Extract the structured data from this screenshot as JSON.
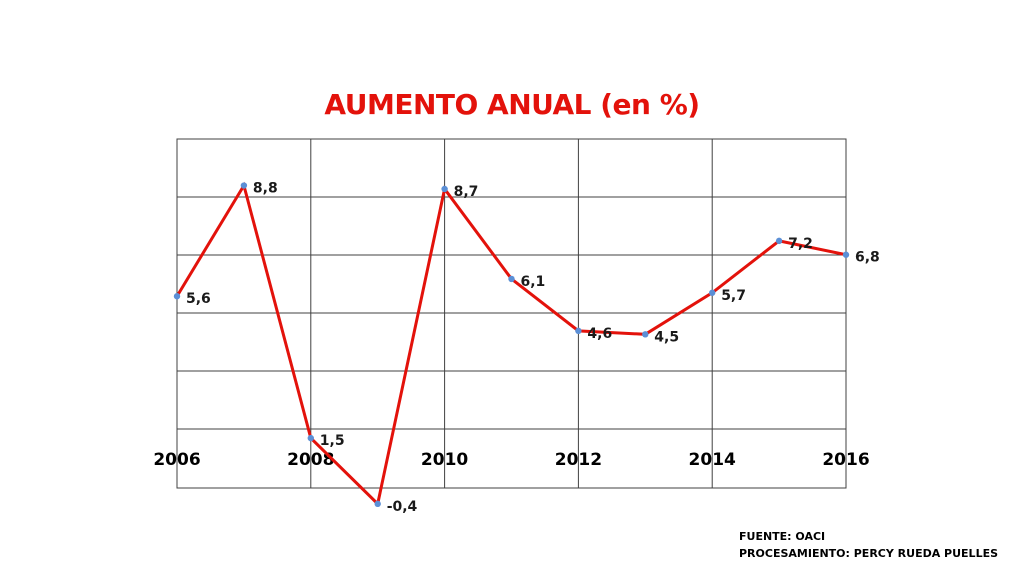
{
  "chart_data": {
    "type": "line",
    "title": "AUMENTO ANUAL (en %)",
    "x": [
      2006,
      2007,
      2008,
      2009,
      2010,
      2011,
      2012,
      2013,
      2014,
      2015,
      2016
    ],
    "series": [
      {
        "values": [
          5.6,
          8.8,
          1.5,
          -0.4,
          8.7,
          6.1,
          4.6,
          4.5,
          5.7,
          7.2,
          6.8
        ],
        "labels": [
          "5,6",
          "8,8",
          "1,5",
          "-0,4",
          "8,7",
          "6,1",
          "4,6",
          "4,5",
          "5,7",
          "7,2",
          "6,8"
        ],
        "color": "#e3120b",
        "marker_color": "#5b8fd6"
      }
    ],
    "x_tick_labels": [
      "2006",
      "2008",
      "2010",
      "2012",
      "2014",
      "2016"
    ],
    "x_ticks": [
      2006,
      2008,
      2010,
      2012,
      2014,
      2016
    ],
    "xlim": [
      2006,
      2016
    ],
    "grid": true,
    "legend": "none"
  },
  "footer": {
    "source": "FUENTE: OACI",
    "processing": "PROCESAMIENTO: PERCY RUEDA PUELLES"
  },
  "colors": {
    "title": "#e3120b",
    "line": "#e3120b",
    "marker": "#5b8fd6",
    "grid": "#404040"
  }
}
